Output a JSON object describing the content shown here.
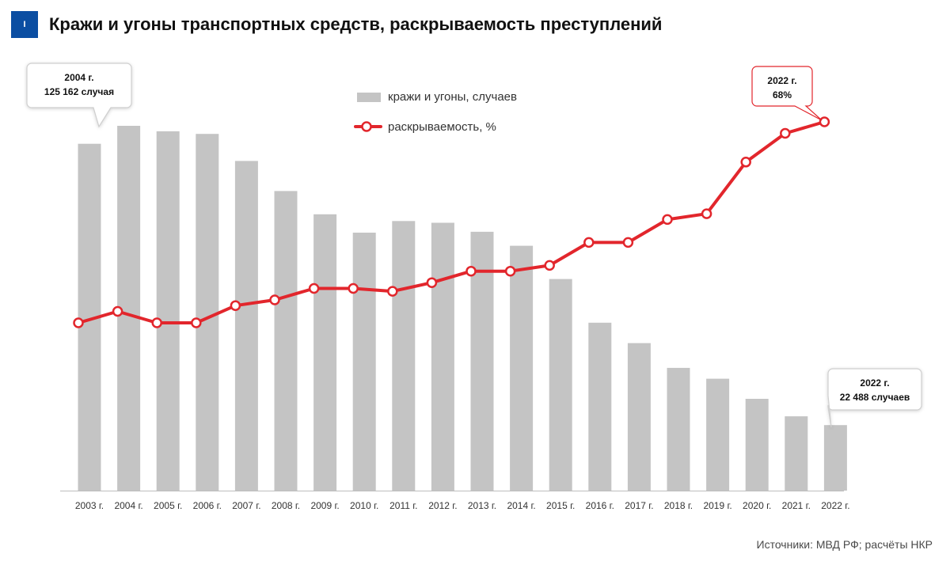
{
  "header": {
    "badge": "I",
    "title": "Кражи и угоны транспортных средств, раскрываемость преступлений"
  },
  "source": "Источники: МВД РФ; расчёты НКР",
  "colors": {
    "bars": "#c4c4c4",
    "line": "#e2262c",
    "badge": "#0b4ea2",
    "callout_border_gray": "#cfcfcf",
    "callout_border_red": "#e2262c"
  },
  "callouts": [
    {
      "line1": "2004 г.",
      "line2": "125 162 случая",
      "border": "gray"
    },
    {
      "line1": "2022 г.",
      "line2": "68%",
      "border": "red"
    },
    {
      "line1": "2022 г.",
      "line2": "22 488 случаев",
      "border": "gray"
    }
  ],
  "chart_data": {
    "type": "bar+line",
    "categories": [
      "2003 г.",
      "2004 г.",
      "2005 г.",
      "2006 г.",
      "2007 г.",
      "2008 г.",
      "2009 г.",
      "2010 г.",
      "2011 г.",
      "2012 г.",
      "2013 г.",
      "2014 г.",
      "2015 г.",
      "2016 г.",
      "2017 г.",
      "2018 г.",
      "2019 г.",
      "2020 г.",
      "2021 г.",
      "2022 г."
    ],
    "legend": [
      "кражи и угоны, случаев",
      "раскрываемость, %"
    ],
    "legend_position": "top-center",
    "grid": false,
    "series": [
      {
        "name": "кражи и угоны, случаев",
        "type": "bar",
        "values": [
          119000,
          125162,
          123300,
          122400,
          113100,
          102800,
          94800,
          88500,
          92500,
          91900,
          88800,
          84000,
          72600,
          57600,
          50600,
          42100,
          38400,
          31500,
          25500,
          22488
        ]
      },
      {
        "name": "раскрываемость, %",
        "type": "line",
        "values": [
          33,
          35,
          33,
          33,
          36,
          37,
          39,
          39,
          38.5,
          40,
          42,
          42,
          43,
          47,
          47,
          51,
          52,
          61,
          66,
          68
        ]
      }
    ]
  }
}
